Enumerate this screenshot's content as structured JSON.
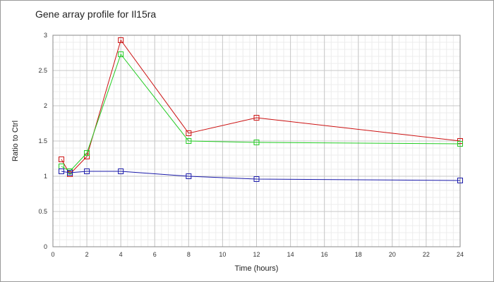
{
  "chart_data": {
    "type": "line",
    "title": "Gene array profile for Il15ra",
    "xlabel": "Time (hours)",
    "ylabel": "Ratio to Ctrl",
    "xlim": [
      0,
      24
    ],
    "ylim": [
      0,
      3
    ],
    "xticks": [
      0,
      2,
      4,
      6,
      8,
      10,
      12,
      14,
      16,
      18,
      20,
      22,
      24
    ],
    "yticks": [
      0,
      0.5,
      1,
      1.5,
      2,
      2.5,
      3
    ],
    "ytick_labels": [
      "0",
      "0.5",
      "1",
      "1.5",
      "2",
      "2.5",
      "3"
    ],
    "grid": true,
    "legend": "none",
    "marker": "square",
    "series": [
      {
        "color": "#cc1111",
        "x": [
          0.5,
          1,
          2,
          4,
          8,
          12,
          24
        ],
        "y": [
          1.24,
          1.03,
          1.28,
          2.93,
          1.61,
          1.83,
          1.5
        ]
      },
      {
        "color": "#22cc22",
        "x": [
          0.5,
          1,
          2,
          4,
          8,
          12,
          24
        ],
        "y": [
          1.14,
          1.07,
          1.33,
          2.73,
          1.5,
          1.48,
          1.46
        ]
      },
      {
        "color": "#1a1aaa",
        "x": [
          0.5,
          1,
          2,
          4,
          8,
          12,
          24
        ],
        "y": [
          1.07,
          1.05,
          1.07,
          1.07,
          1.0,
          0.96,
          0.94
        ]
      }
    ]
  }
}
